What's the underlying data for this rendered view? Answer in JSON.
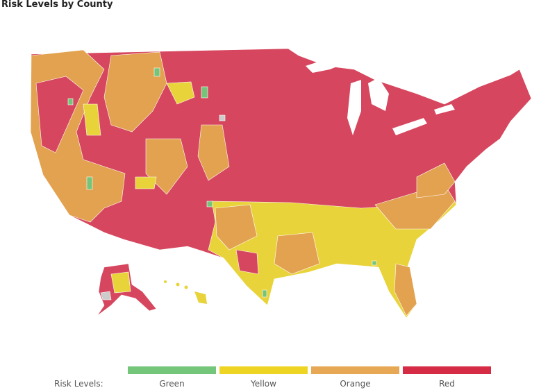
{
  "title": "Risk Levels by County",
  "legend": {
    "label": "Risk Levels:",
    "items": [
      {
        "label": "Green",
        "color": "#74c77a"
      },
      {
        "label": "Yellow",
        "color": "#efd523"
      },
      {
        "label": "Orange",
        "color": "#e6a854"
      },
      {
        "label": "Red",
        "color": "#d62b45"
      }
    ]
  },
  "colors": {
    "red": "#d6475f",
    "orange": "#e3a24f",
    "yellow": "#e9d33a",
    "green": "#76c47a",
    "lake": "#ffffff"
  }
}
